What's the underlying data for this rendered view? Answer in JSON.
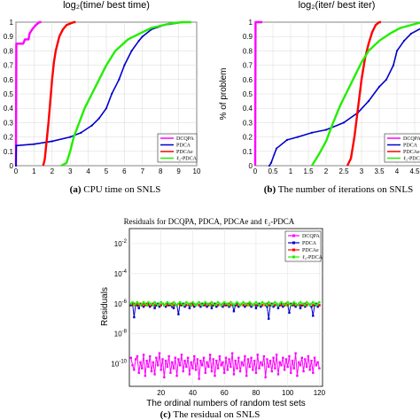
{
  "panel_a": {
    "top_label": "log₂(time/ best time)",
    "caption_letter": "(a)",
    "caption_text": " CPU time on SNLS"
  },
  "panel_b": {
    "top_label": "log₂(iter/ best iter)",
    "ylabel": "% of problem",
    "caption_letter": "(b)",
    "caption_text": " The number of iterations on SNLS"
  },
  "panel_c": {
    "title": "Residuals for DCQPA, PDCA, PDCAe and ℓ₂-PDCA",
    "xlabel": "The ordinal numbers of random test sets",
    "ylabel": "Residuals",
    "caption_letter": "(c)",
    "caption_text": " The residual on SNLS"
  },
  "colors": {
    "DCQPA": "#ff00ff",
    "PDCA": "#0000cc",
    "PDCAe": "#ff0000",
    "l2PDCA": "#22ee00"
  },
  "chart_data": [
    {
      "type": "line",
      "xlabel": "",
      "ylabel": "",
      "xlim": [
        0,
        10
      ],
      "ylim": [
        0,
        1
      ],
      "xticks": [
        "0",
        "1",
        "2",
        "3",
        "4",
        "5",
        "6",
        "7",
        "8",
        "9",
        "10"
      ],
      "yticks": [
        "0",
        "0.1",
        "0.2",
        "0.3",
        "0.4",
        "0.5",
        "0.6",
        "0.7",
        "0.8",
        "0.9",
        "1"
      ],
      "grid": true,
      "legend": "bottom-right",
      "series": [
        {
          "name": "DCQPA",
          "key": "DCQPA",
          "points": [
            [
              0,
              0
            ],
            [
              0.02,
              0.85
            ],
            [
              0.4,
              0.85
            ],
            [
              0.5,
              0.88
            ],
            [
              0.7,
              0.88
            ],
            [
              0.75,
              0.92
            ],
            [
              0.9,
              0.95
            ],
            [
              1.1,
              0.98
            ],
            [
              1.3,
              1.0
            ],
            [
              1.4,
              1.0
            ]
          ]
        },
        {
          "name": "PDCA",
          "key": "PDCA",
          "points": [
            [
              0,
              0
            ],
            [
              0.02,
              0.14
            ],
            [
              1.0,
              0.15
            ],
            [
              2.0,
              0.17
            ],
            [
              3.0,
              0.2
            ],
            [
              3.6,
              0.23
            ],
            [
              4.2,
              0.28
            ],
            [
              4.6,
              0.33
            ],
            [
              5.0,
              0.4
            ],
            [
              5.3,
              0.5
            ],
            [
              5.7,
              0.6
            ],
            [
              6.0,
              0.7
            ],
            [
              6.4,
              0.8
            ],
            [
              6.8,
              0.87
            ],
            [
              7.0,
              0.9
            ],
            [
              7.5,
              0.95
            ],
            [
              8.2,
              0.98
            ],
            [
              9.3,
              1.0
            ],
            [
              9.5,
              1.0
            ]
          ]
        },
        {
          "name": "PDCAe",
          "key": "PDCAe",
          "points": [
            [
              1.5,
              0
            ],
            [
              1.55,
              0.02
            ],
            [
              1.6,
              0.05
            ],
            [
              1.8,
              0.3
            ],
            [
              1.9,
              0.45
            ],
            [
              2.0,
              0.6
            ],
            [
              2.1,
              0.72
            ],
            [
              2.2,
              0.8
            ],
            [
              2.3,
              0.85
            ],
            [
              2.4,
              0.9
            ],
            [
              2.6,
              0.95
            ],
            [
              2.8,
              0.98
            ],
            [
              3.2,
              1.0
            ],
            [
              3.3,
              1.0
            ]
          ]
        },
        {
          "name": "ℓ₂-PDCA",
          "key": "l2PDCA",
          "points": [
            [
              2.5,
              0
            ],
            [
              2.8,
              0.02
            ],
            [
              3.0,
              0.1
            ],
            [
              3.2,
              0.2
            ],
            [
              3.5,
              0.3
            ],
            [
              3.8,
              0.4
            ],
            [
              4.2,
              0.5
            ],
            [
              4.6,
              0.6
            ],
            [
              5.0,
              0.7
            ],
            [
              5.5,
              0.8
            ],
            [
              6.2,
              0.88
            ],
            [
              7.0,
              0.93
            ],
            [
              7.5,
              0.96
            ],
            [
              8.5,
              0.99
            ],
            [
              9.2,
              1.0
            ],
            [
              9.7,
              1.0
            ]
          ]
        }
      ]
    },
    {
      "type": "line",
      "xlabel": "",
      "ylabel": "% of problem",
      "xlim": [
        0,
        5
      ],
      "ylim": [
        0,
        1
      ],
      "xticks": [
        "0",
        "0.5",
        "1",
        "1.5",
        "2",
        "2.5",
        "3",
        "3.5",
        "4",
        "4.5",
        "5"
      ],
      "yticks": [
        "0",
        "0.1",
        "0.2",
        "0.3",
        "0.4",
        "0.5",
        "0.6",
        "0.7",
        "0.8",
        "0.9",
        "1"
      ],
      "grid": true,
      "legend": "bottom-right",
      "series": [
        {
          "name": "DCQPA",
          "key": "DCQPA",
          "points": [
            [
              0,
              0
            ],
            [
              0.01,
              1.0
            ],
            [
              0.2,
              1.0
            ]
          ]
        },
        {
          "name": "PDCA",
          "key": "PDCA",
          "points": [
            [
              0.4,
              0
            ],
            [
              0.45,
              0.02
            ],
            [
              0.6,
              0.12
            ],
            [
              0.9,
              0.18
            ],
            [
              1.2,
              0.2
            ],
            [
              1.6,
              0.23
            ],
            [
              2.0,
              0.25
            ],
            [
              2.5,
              0.3
            ],
            [
              2.9,
              0.37
            ],
            [
              3.2,
              0.45
            ],
            [
              3.5,
              0.55
            ],
            [
              3.7,
              0.6
            ],
            [
              3.9,
              0.7
            ],
            [
              4.0,
              0.8
            ],
            [
              4.2,
              0.87
            ],
            [
              4.4,
              0.92
            ],
            [
              4.7,
              0.96
            ],
            [
              4.9,
              1.0
            ]
          ]
        },
        {
          "name": "PDCAe",
          "key": "PDCAe",
          "points": [
            [
              2.6,
              0
            ],
            [
              2.7,
              0.05
            ],
            [
              2.8,
              0.2
            ],
            [
              2.9,
              0.4
            ],
            [
              3.0,
              0.6
            ],
            [
              3.1,
              0.75
            ],
            [
              3.2,
              0.85
            ],
            [
              3.3,
              0.93
            ],
            [
              3.4,
              0.98
            ],
            [
              3.5,
              1.0
            ],
            [
              3.55,
              1.0
            ]
          ]
        },
        {
          "name": "ℓ₂-PDCA",
          "key": "l2PDCA",
          "points": [
            [
              1.6,
              0
            ],
            [
              1.8,
              0.08
            ],
            [
              2.0,
              0.17
            ],
            [
              2.2,
              0.3
            ],
            [
              2.4,
              0.42
            ],
            [
              2.6,
              0.52
            ],
            [
              2.8,
              0.62
            ],
            [
              3.0,
              0.72
            ],
            [
              3.2,
              0.8
            ],
            [
              3.5,
              0.87
            ],
            [
              3.8,
              0.92
            ],
            [
              4.1,
              0.96
            ],
            [
              4.4,
              0.98
            ],
            [
              4.7,
              1.0
            ]
          ]
        }
      ]
    },
    {
      "type": "line",
      "title": "Residuals for DCQPA, PDCA, PDCAe and ℓ₂-PDCA",
      "xlabel": "The ordinal numbers of random test sets",
      "ylabel": "Residuals",
      "xlim": [
        0,
        122
      ],
      "ylim_log10": [
        -11.5,
        -1
      ],
      "yscale": "log",
      "xticks": [
        "20",
        "40",
        "60",
        "80",
        "100",
        "120"
      ],
      "yticks_exp": [
        "-2",
        "-4",
        "-6",
        "-8",
        "-10"
      ],
      "grid": true,
      "legend": "top-right",
      "series": [
        {
          "name": "DCQPA",
          "key": "DCQPA",
          "log10_values": [
            -9.6,
            -10.1,
            -10.4,
            -9.7,
            -9.5,
            -10.6,
            -9.9,
            -10.3,
            -9.4,
            -10.8,
            -9.8,
            -10.2,
            -9.5,
            -10.5,
            -9.9,
            -10.7,
            -9.6,
            -10.1,
            -9.3,
            -10.4,
            -9.7,
            -10.9,
            -9.8,
            -10.2,
            -9.5,
            -10.6,
            -9.9,
            -10.3,
            -9.6,
            -10.8,
            -9.7,
            -10.1,
            -9.4,
            -10.5,
            -9.8,
            -10.2,
            -9.6,
            -10.7,
            -9.9,
            -10.3,
            -9.5,
            -10.4,
            -9.7,
            -11.0,
            -9.8,
            -10.1,
            -9.6,
            -10.6,
            -9.9,
            -10.2,
            -9.4,
            -10.5,
            -9.7,
            -10.8,
            -9.8,
            -10.3,
            -9.5,
            -10.1,
            -9.9,
            -10.6,
            -9.6,
            -10.4,
            -9.7,
            -10.2,
            -9.3,
            -10.7,
            -9.8,
            -10.3,
            -9.6,
            -10.5,
            -9.9,
            -10.1,
            -9.5,
            -10.8,
            -9.7,
            -10.2,
            -9.6,
            -10.4,
            -9.8,
            -10.6,
            -9.4,
            -10.3,
            -9.9,
            -10.1,
            -9.5,
            -10.9,
            -9.7,
            -10.2,
            -9.8,
            -10.5,
            -9.6,
            -10.3,
            -9.4,
            -10.7,
            -9.9,
            -10.1,
            -9.6,
            -10.4,
            -9.7,
            -10.2,
            -9.5,
            -10.6,
            -9.8,
            -10.3,
            -9.3,
            -10.8,
            -9.9,
            -10.1,
            -9.6,
            -10.5,
            -9.7,
            -10.2,
            -9.5,
            -10.4,
            -9.8,
            -10.6,
            -9.6,
            -10.1,
            -9.9,
            -10.3
          ]
        },
        {
          "name": "PDCA",
          "key": "PDCA",
          "log10_values": [
            -6.1,
            -6.0,
            -6.2,
            -6.0,
            -6.1,
            -6.3,
            -6.0,
            -6.1,
            -6.2,
            -6.0,
            -6.1,
            -6.0,
            -6.2,
            -6.1,
            -6.0,
            -6.3,
            -6.1,
            -6.0,
            -6.2,
            -6.1,
            -6.0,
            -6.1,
            -6.2,
            -6.0,
            -6.1,
            -6.0,
            -6.2,
            -6.3,
            -6.0,
            -6.1,
            -6.2,
            -6.0,
            -6.1,
            -6.0,
            -6.2,
            -6.1,
            -6.0,
            -6.3,
            -6.1,
            -6.0,
            -6.2,
            -6.1,
            -6.0,
            -6.1,
            -6.2,
            -6.0,
            -6.1,
            -6.0,
            -6.2,
            -6.1,
            -6.0,
            -6.3,
            -6.1,
            -6.0,
            -6.2,
            -6.1,
            -6.0,
            -6.1,
            -6.2,
            -6.0,
            -6.1,
            -6.0,
            -6.2,
            -6.1,
            -6.0,
            -6.3,
            -6.1,
            -6.0,
            -6.2,
            -6.1,
            -6.0,
            -6.1,
            -6.2,
            -6.0,
            -6.1,
            -6.0,
            -6.2,
            -6.1,
            -6.0,
            -6.3,
            -6.1,
            -6.0,
            -6.2,
            -6.1,
            -6.0,
            -6.1,
            -6.2,
            -6.0,
            -6.1,
            -6.0,
            -6.2,
            -6.1,
            -6.0,
            -6.3,
            -6.1,
            -6.0,
            -6.2,
            -6.1,
            -6.0,
            -6.1,
            -6.2,
            -6.0,
            -6.1,
            -6.0,
            -6.2,
            -6.1,
            -6.0,
            -6.3,
            -6.1,
            -6.0,
            -6.2,
            -6.1,
            -6.0,
            -6.1,
            -6.2,
            -6.0,
            -6.1,
            -6.0,
            -6.2,
            -6.1
          ],
          "dips": [
            [
              3,
              -6.9
            ],
            [
              31,
              -6.7
            ],
            [
              66,
              -6.5
            ],
            [
              88,
              -7.0
            ],
            [
              101,
              -6.6
            ],
            [
              116,
              -6.8
            ]
          ]
        },
        {
          "name": "PDCAe",
          "key": "PDCAe",
          "log10_values": [
            -6.0,
            -6.1,
            -6.0,
            -6.1,
            -6.0,
            -6.1,
            -6.0,
            -6.1,
            -6.0,
            -6.1,
            -6.0,
            -6.1,
            -6.0,
            -6.1,
            -6.0,
            -6.1,
            -6.0,
            -6.1,
            -6.0,
            -6.1,
            -6.0,
            -6.1,
            -6.0,
            -6.1,
            -6.0,
            -6.1,
            -6.0,
            -6.1,
            -6.0,
            -6.1,
            -6.0,
            -6.1,
            -6.0,
            -6.1,
            -6.0,
            -6.1,
            -6.0,
            -6.1,
            -6.0,
            -6.1,
            -6.0,
            -6.1,
            -6.0,
            -6.1,
            -6.0,
            -6.1,
            -6.0,
            -6.1,
            -6.0,
            -6.1,
            -6.0,
            -6.1,
            -6.0,
            -6.1,
            -6.0,
            -6.1,
            -6.0,
            -6.1,
            -6.0,
            -6.1,
            -6.0,
            -6.1,
            -6.0,
            -6.1,
            -6.0,
            -6.1,
            -6.0,
            -6.1,
            -6.0,
            -6.1,
            -6.0,
            -6.1,
            -6.0,
            -6.1,
            -6.0,
            -6.1,
            -6.0,
            -6.1,
            -6.0,
            -6.1,
            -6.0,
            -6.1,
            -6.0,
            -6.1,
            -6.0,
            -6.1,
            -6.0,
            -6.1,
            -6.0,
            -6.1,
            -6.0,
            -6.1,
            -6.0,
            -6.1,
            -6.0,
            -6.1,
            -6.0,
            -6.1,
            -6.0,
            -6.1,
            -6.0,
            -6.1,
            -6.0,
            -6.1,
            -6.0,
            -6.1,
            -6.0,
            -6.1,
            -6.0,
            -6.1,
            -6.0,
            -6.1,
            -6.0,
            -6.1,
            -6.0,
            -6.1,
            -6.0,
            -6.1,
            -6.0,
            -6.1
          ]
        },
        {
          "name": "ℓ₂-PDCA",
          "key": "l2PDCA",
          "log10_values": [
            -6.0,
            -5.9,
            -6.1,
            -6.0,
            -5.9,
            -6.0,
            -6.1,
            -6.0,
            -5.9,
            -6.0,
            -6.1,
            -5.9,
            -6.0,
            -6.0,
            -6.1,
            -5.9,
            -6.0,
            -6.1,
            -6.0,
            -5.9,
            -6.0,
            -6.1,
            -6.0,
            -5.9,
            -6.0,
            -6.0,
            -6.1,
            -5.9,
            -6.0,
            -6.1,
            -6.0,
            -5.9,
            -6.0,
            -6.1,
            -6.0,
            -5.9,
            -6.0,
            -6.0,
            -6.1,
            -5.9,
            -6.0,
            -6.1,
            -6.0,
            -5.9,
            -6.0,
            -6.1,
            -6.0,
            -5.9,
            -6.0,
            -6.0,
            -6.1,
            -5.9,
            -6.0,
            -6.1,
            -6.0,
            -5.9,
            -6.0,
            -6.1,
            -6.0,
            -5.9,
            -6.0,
            -6.0,
            -6.1,
            -5.9,
            -6.0,
            -6.1,
            -6.0,
            -5.9,
            -6.0,
            -6.1,
            -6.0,
            -5.9,
            -6.0,
            -6.0,
            -6.1,
            -5.9,
            -6.0,
            -6.1,
            -6.0,
            -5.9,
            -6.0,
            -6.1,
            -6.0,
            -5.9,
            -6.0,
            -6.0,
            -6.1,
            -5.9,
            -6.0,
            -6.1,
            -6.0,
            -5.9,
            -6.0,
            -6.1,
            -6.0,
            -5.9,
            -6.0,
            -6.0,
            -6.1,
            -5.9,
            -6.0,
            -6.1,
            -6.0,
            -5.9,
            -6.0,
            -6.1,
            -6.0,
            -5.9,
            -6.0,
            -6.0,
            -6.1,
            -5.9,
            -6.0,
            -6.1,
            -6.0,
            -5.9,
            -6.0,
            -6.1,
            -6.0,
            -5.9
          ]
        }
      ]
    }
  ]
}
